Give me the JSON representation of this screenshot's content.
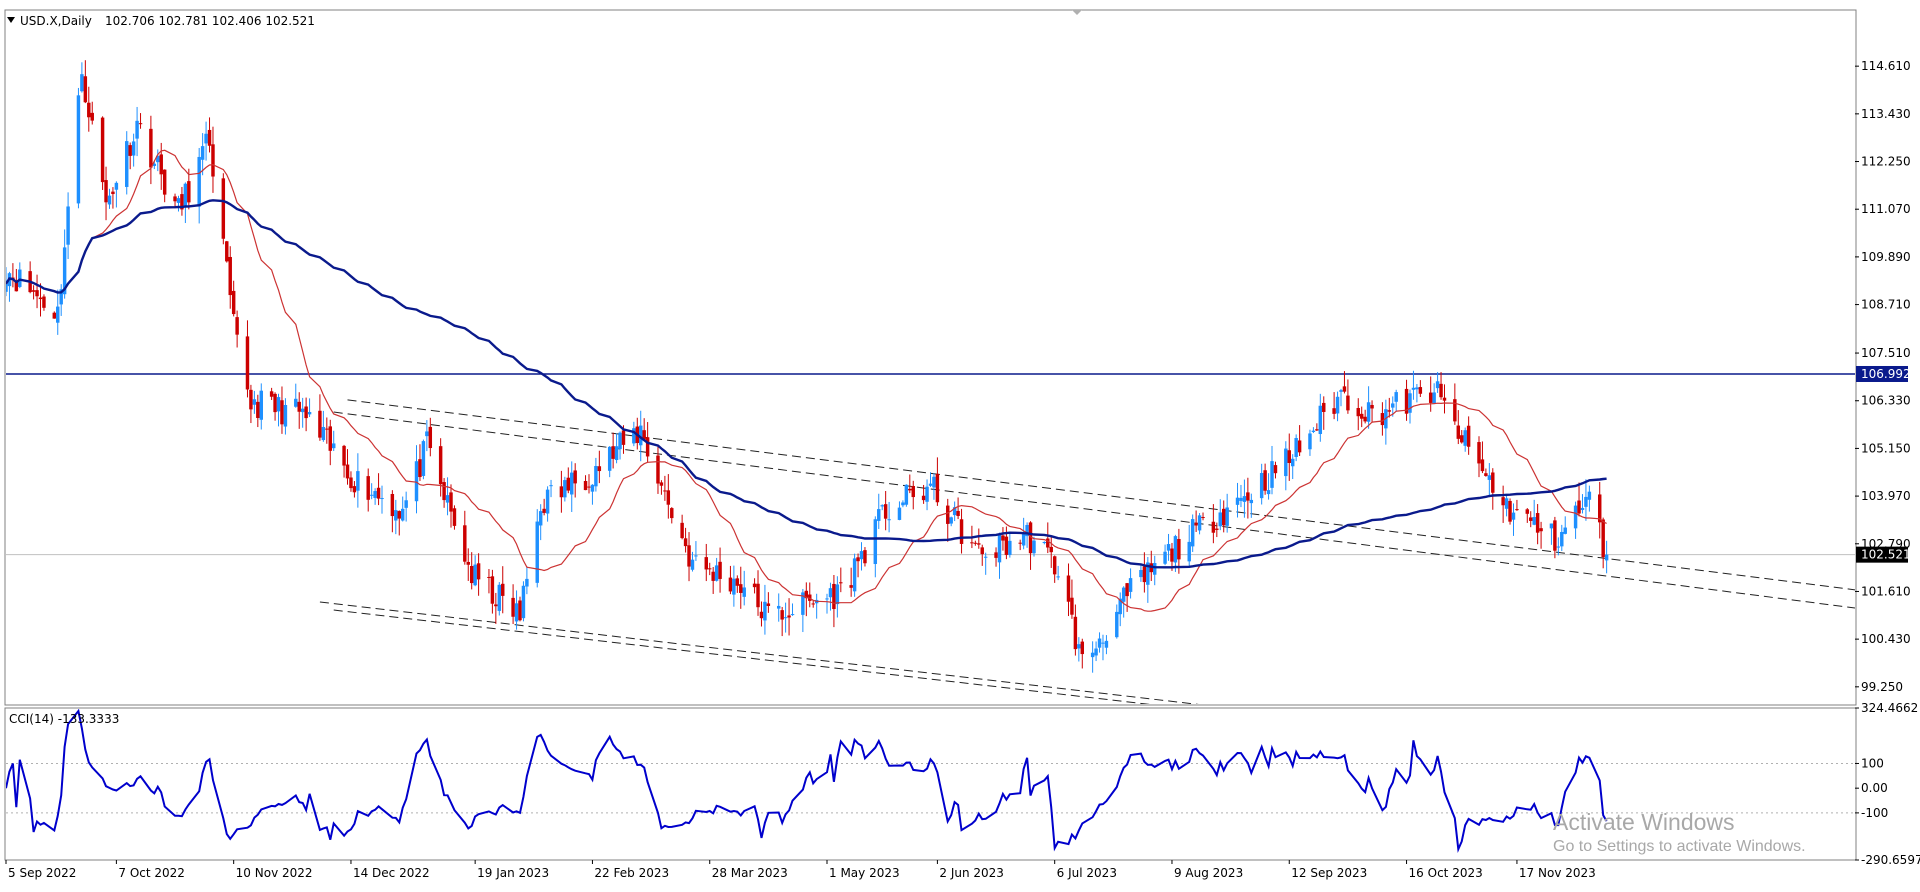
{
  "header": {
    "symbol_label": "USD.X,Daily",
    "ohlc": "102.706 102.781 102.406 102.521"
  },
  "watermark": {
    "title": "Activate Windows",
    "subtitle": "Go to Settings to activate Windows."
  },
  "colors": {
    "bull": "#1e90ff",
    "bear": "#cc0000",
    "ma_fast": "#cc3333",
    "ma_slow": "#0a1a8c",
    "resistance": "#0a1a8c",
    "cci": "#0000cc",
    "badge_resistance": "#0a1a8c",
    "badge_price": "#000000"
  },
  "chart_data": [
    {
      "type": "candlestick",
      "title": "USD.X,Daily",
      "ylim": [
        98.8,
        116.0
      ],
      "y_ticks": [
        "114.610",
        "113.430",
        "112.250",
        "111.070",
        "109.890",
        "108.710",
        "107.510",
        "106.330",
        "105.150",
        "103.970",
        "102.790",
        "101.610",
        "100.430",
        "99.250"
      ],
      "x_ticks": [
        "5 Sep 2022",
        "7 Oct 2022",
        "10 Nov 2022",
        "14 Dec 2022",
        "19 Jan 2023",
        "22 Feb 2023",
        "28 Mar 2023",
        "1 May 2023",
        "2 Jun 2023",
        "6 Jul 2023",
        "9 Aug 2023",
        "12 Sep 2023",
        "16 Oct 2023",
        "17 Nov 2023"
      ],
      "x_range": [
        "2022-09-05",
        "2024-02-23"
      ],
      "close_anchors": [
        [
          "2022-09-05",
          109.6
        ],
        [
          "2022-09-20",
          108.5
        ],
        [
          "2022-09-27",
          114.5
        ],
        [
          "2022-10-04",
          111.2
        ],
        [
          "2022-10-13",
          113.2
        ],
        [
          "2022-10-25",
          111.0
        ],
        [
          "2022-11-03",
          112.8
        ],
        [
          "2022-11-10",
          108.1
        ],
        [
          "2022-11-15",
          106.3
        ],
        [
          "2022-11-30",
          106.0
        ],
        [
          "2022-12-15",
          104.4
        ],
        [
          "2022-12-29",
          103.6
        ],
        [
          "2023-01-05",
          105.2
        ],
        [
          "2023-01-18",
          102.0
        ],
        [
          "2023-02-01",
          101.0
        ],
        [
          "2023-02-07",
          103.8
        ],
        [
          "2023-02-22",
          104.6
        ],
        [
          "2023-03-08",
          105.6
        ],
        [
          "2023-03-15",
          104.0
        ],
        [
          "2023-03-23",
          102.3
        ],
        [
          "2023-04-06",
          101.8
        ],
        [
          "2023-04-14",
          101.0
        ],
        [
          "2023-04-25",
          101.3
        ],
        [
          "2023-05-05",
          101.6
        ],
        [
          "2023-05-18",
          103.6
        ],
        [
          "2023-05-31",
          104.2
        ],
        [
          "2023-06-14",
          102.5
        ],
        [
          "2023-06-28",
          103.0
        ],
        [
          "2023-07-07",
          102.2
        ],
        [
          "2023-07-14",
          99.8
        ],
        [
          "2023-07-28",
          101.6
        ],
        [
          "2023-08-10",
          102.7
        ],
        [
          "2023-08-22",
          103.5
        ],
        [
          "2023-09-01",
          104.1
        ],
        [
          "2023-09-12",
          104.9
        ],
        [
          "2023-09-27",
          106.5
        ],
        [
          "2023-10-06",
          106.0
        ],
        [
          "2023-10-16",
          106.3
        ],
        [
          "2023-10-24",
          106.6
        ],
        [
          "2023-11-03",
          105.1
        ],
        [
          "2023-11-14",
          103.7
        ],
        [
          "2023-11-28",
          102.9
        ],
        [
          "2023-12-08",
          103.9
        ],
        [
          "2023-12-13",
          102.5
        ]
      ],
      "ma_fast_period": 20,
      "ma_slow_period": 100,
      "resistance": 106.992,
      "last_price": 102.521,
      "badges": [
        "106.992",
        "102.521"
      ],
      "channel_lines": [
        [
          [
            "2022-12-13",
            106.35
          ],
          [
            "2024-02-23",
            101.65
          ]
        ],
        [
          [
            "2022-12-09",
            106.05
          ],
          [
            "2024-02-23",
            101.2
          ]
        ],
        [
          [
            "2022-12-05",
            101.35
          ],
          [
            "2023-08-18",
            98.8
          ]
        ],
        [
          [
            "2022-12-09",
            101.15
          ],
          [
            "2023-08-04",
            98.8
          ]
        ]
      ]
    },
    {
      "type": "line",
      "title": "CCI(14) -133.3333",
      "period": 14,
      "last_value": -133.3333,
      "ylim": [
        -290.6597,
        324.4662
      ],
      "y_ticks": [
        "324.4662",
        "100",
        "0.00",
        "-100",
        "-290.6597"
      ],
      "levels": [
        100,
        -100
      ]
    }
  ]
}
